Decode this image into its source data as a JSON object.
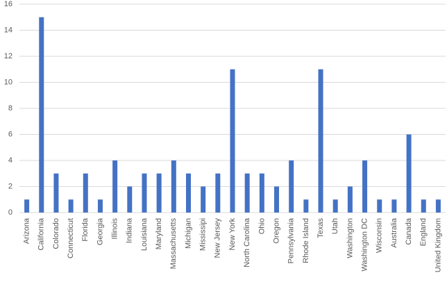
{
  "chart_data": {
    "type": "bar",
    "categories": [
      "Arizona",
      "California",
      "Colorado",
      "Connecticut",
      "Florida",
      "Georgia",
      "Illinois",
      "Indiana",
      "Louisiana",
      "Maryland",
      "Massachusetts",
      "Michigan",
      "Mississipi",
      "New Jersey",
      "New York",
      "North Carolina",
      "Ohio",
      "Oregon",
      "Pennsylvania",
      "Rhode Island",
      "Texas",
      "Utah",
      "Washington",
      "Washington DC",
      "Wisconsin",
      "Australia",
      "Canada",
      "England",
      "United Kingdom"
    ],
    "values": [
      1,
      15,
      3,
      1,
      3,
      1,
      4,
      2,
      3,
      3,
      4,
      3,
      2,
      3,
      11,
      3,
      3,
      2,
      4,
      1,
      11,
      1,
      2,
      4,
      1,
      1,
      6,
      1,
      1
    ],
    "color": "#4472c4",
    "ylim": [
      0,
      16
    ],
    "yticks": [
      0,
      2,
      4,
      6,
      8,
      10,
      12,
      14,
      16
    ],
    "grid": true
  }
}
